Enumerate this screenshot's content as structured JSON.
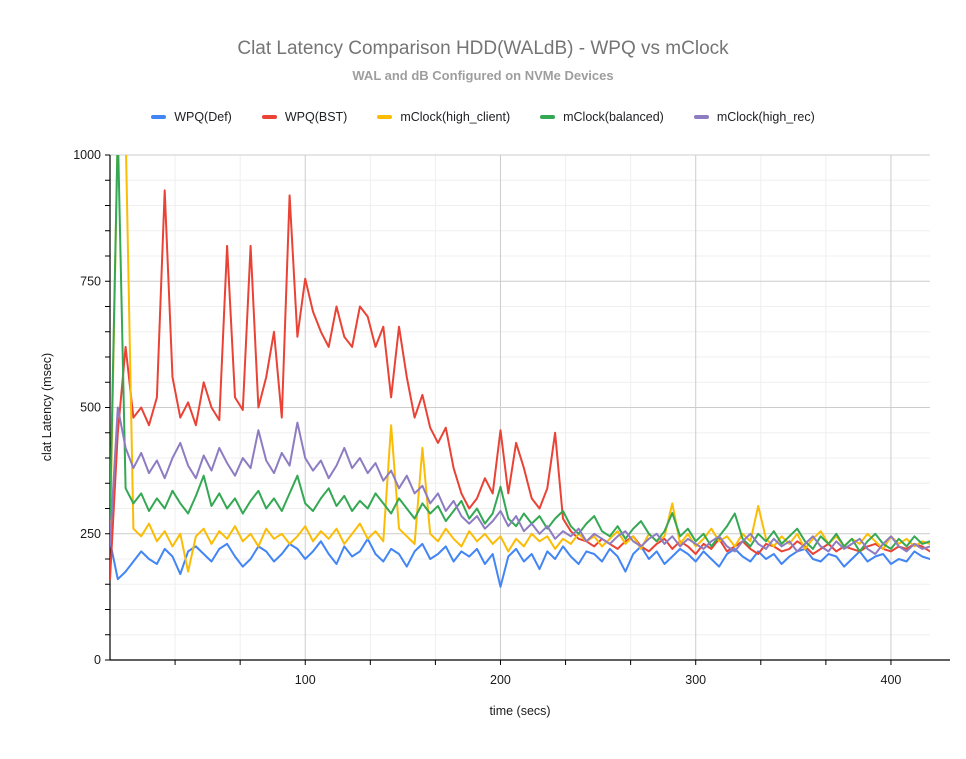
{
  "header": {
    "title": "Clat Latency Comparison HDD(WALdB) - WPQ vs mClock",
    "subtitle": "WAL and dB Configured on NVMe Devices"
  },
  "chart_data": {
    "type": "line",
    "title": "Clat Latency Comparison HDD(WALdB) - WPQ vs mClock",
    "subtitle": "WAL and dB Configured on NVMe Devices",
    "xlabel": "time (secs)",
    "ylabel": "clat Latency (msec)",
    "xlim": [
      0,
      420
    ],
    "ylim": [
      0,
      1000
    ],
    "x_ticks": [
      100,
      200,
      300,
      400
    ],
    "y_ticks": [
      0,
      250,
      500,
      750,
      1000
    ],
    "x_minor_step": 33.3333,
    "y_minor_step": 50,
    "grid": true,
    "legend_position": "top",
    "x_start": 0,
    "x_step": 4,
    "series": [
      {
        "name": "WPQ(Def)",
        "color": "#4285F4",
        "values": [
          235,
          160,
          175,
          195,
          215,
          200,
          190,
          220,
          205,
          170,
          215,
          225,
          210,
          195,
          220,
          230,
          205,
          185,
          200,
          225,
          215,
          195,
          210,
          230,
          220,
          200,
          215,
          235,
          210,
          190,
          225,
          205,
          215,
          240,
          210,
          195,
          220,
          210,
          185,
          215,
          230,
          200,
          210,
          225,
          195,
          215,
          205,
          220,
          190,
          210,
          145,
          205,
          220,
          195,
          210,
          180,
          215,
          200,
          225,
          205,
          190,
          215,
          210,
          195,
          220,
          205,
          175,
          210,
          225,
          200,
          215,
          190,
          205,
          220,
          210,
          195,
          215,
          200,
          185,
          210,
          220,
          205,
          195,
          215,
          200,
          210,
          190,
          205,
          215,
          220,
          200,
          195,
          210,
          205,
          185,
          200,
          215,
          195,
          205,
          210,
          190,
          200,
          195,
          215,
          205,
          200
        ]
      },
      {
        "name": "WPQ(BST)",
        "color": "#EA4335",
        "values": [
          160,
          450,
          620,
          480,
          500,
          465,
          520,
          930,
          560,
          480,
          510,
          465,
          550,
          500,
          475,
          820,
          520,
          495,
          820,
          500,
          560,
          650,
          480,
          920,
          640,
          755,
          690,
          650,
          620,
          700,
          640,
          620,
          700,
          680,
          620,
          660,
          520,
          660,
          560,
          480,
          525,
          460,
          430,
          460,
          380,
          330,
          300,
          320,
          360,
          330,
          455,
          330,
          430,
          380,
          320,
          300,
          340,
          450,
          280,
          255,
          240,
          235,
          225,
          240,
          230,
          220,
          235,
          245,
          225,
          215,
          230,
          240,
          220,
          235,
          225,
          210,
          230,
          220,
          240,
          215,
          225,
          235,
          220,
          210,
          230,
          225,
          215,
          220,
          235,
          225,
          210,
          220,
          230,
          215,
          225,
          220,
          215,
          225,
          230,
          220,
          215,
          225,
          220,
          230,
          225,
          215
        ]
      },
      {
        "name": "mClock(high_client)",
        "color": "#FBBC04",
        "values": [
          240,
          1050,
          1050,
          260,
          245,
          270,
          235,
          255,
          225,
          250,
          175,
          245,
          260,
          230,
          255,
          240,
          265,
          235,
          250,
          225,
          260,
          240,
          250,
          230,
          245,
          265,
          235,
          255,
          240,
          260,
          230,
          250,
          270,
          240,
          255,
          235,
          465,
          260,
          245,
          230,
          420,
          250,
          235,
          260,
          240,
          225,
          255,
          235,
          250,
          230,
          245,
          215,
          240,
          225,
          250,
          235,
          245,
          220,
          240,
          230,
          250,
          235,
          245,
          225,
          240,
          255,
          230,
          245,
          220,
          250,
          235,
          245,
          310,
          230,
          250,
          225,
          240,
          260,
          235,
          245,
          225,
          250,
          235,
          305,
          240,
          225,
          245,
          230,
          250,
          220,
          240,
          255,
          230,
          245,
          225,
          240,
          230,
          250,
          235,
          220,
          245,
          230,
          240,
          225,
          235,
          230
        ]
      },
      {
        "name": "mClock(balanced)",
        "color": "#34A853",
        "values": [
          280,
          1050,
          340,
          310,
          330,
          295,
          320,
          300,
          335,
          310,
          290,
          325,
          365,
          305,
          330,
          300,
          320,
          290,
          315,
          335,
          300,
          320,
          295,
          330,
          365,
          310,
          295,
          320,
          340,
          305,
          325,
          295,
          315,
          300,
          330,
          310,
          290,
          320,
          300,
          280,
          310,
          290,
          305,
          275,
          295,
          315,
          280,
          300,
          270,
          290,
          343,
          280,
          265,
          290,
          270,
          285,
          260,
          280,
          295,
          265,
          250,
          270,
          285,
          255,
          245,
          265,
          240,
          260,
          275,
          250,
          235,
          255,
          291,
          245,
          260,
          235,
          250,
          225,
          245,
          265,
          290,
          240,
          225,
          250,
          235,
          255,
          230,
          245,
          260,
          235,
          220,
          245,
          230,
          250,
          225,
          240,
          215,
          235,
          250,
          230,
          220,
          240,
          225,
          245,
          230,
          235
        ]
      },
      {
        "name": "mClock(high_rec)",
        "color": "#8E7CC3",
        "values": [
          230,
          500,
          420,
          380,
          410,
          370,
          395,
          360,
          400,
          430,
          385,
          360,
          405,
          375,
          420,
          390,
          365,
          400,
          380,
          455,
          395,
          370,
          410,
          385,
          470,
          400,
          375,
          395,
          360,
          385,
          420,
          380,
          400,
          370,
          390,
          355,
          375,
          340,
          365,
          330,
          345,
          310,
          330,
          295,
          315,
          285,
          270,
          285,
          260,
          275,
          295,
          265,
          285,
          255,
          270,
          250,
          265,
          240,
          255,
          245,
          260,
          235,
          250,
          240,
          230,
          245,
          255,
          235,
          225,
          240,
          250,
          230,
          245,
          225,
          240,
          230,
          220,
          235,
          245,
          225,
          215,
          235,
          250,
          230,
          220,
          240,
          225,
          235,
          215,
          230,
          245,
          225,
          215,
          235,
          220,
          230,
          240,
          220,
          210,
          230,
          245,
          225,
          215,
          230,
          220,
          225
        ]
      }
    ]
  }
}
